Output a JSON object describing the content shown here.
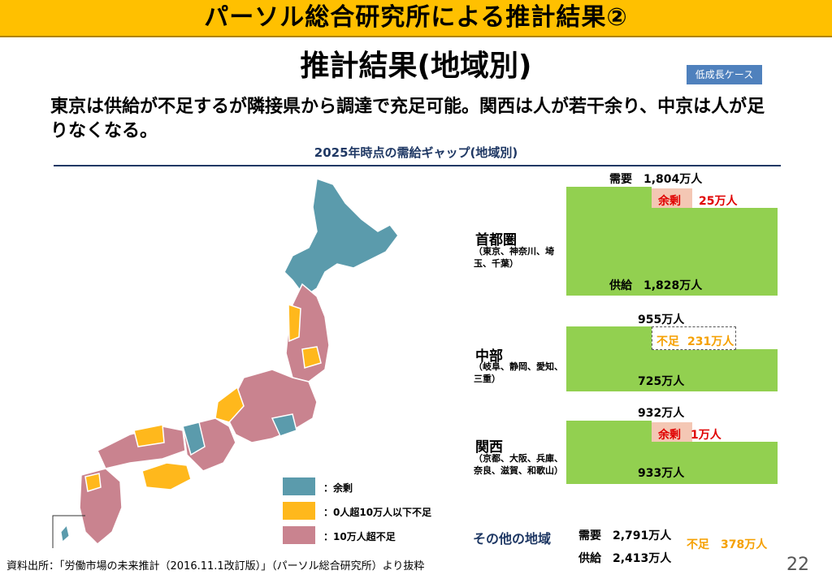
{
  "header": {
    "title": "パーソル総合研究所による推計結果②"
  },
  "subtitle": "推計結果(地域別)",
  "case_tag": "低成長ケース",
  "headline": "東京は供給が不足するが隣接県から調達で充足可能。関西は人が若干余り、中京は人が足りなくなる。",
  "chart_title": "2025年時点の需給ギャップ(地域別)",
  "regions": [
    {
      "name": "首都圏",
      "sub": "（東京、神奈川、埼玉、千葉）",
      "demand": "需要　1,804万人",
      "supply": "供給　1,828万人",
      "gap_label": "余剰",
      "gap_value": "25万人"
    },
    {
      "name": "中部",
      "sub": "（岐阜、静岡、愛知、三重）",
      "demand": "955万人",
      "supply": "725万人",
      "gap_label": "不足",
      "gap_value": "231万人"
    },
    {
      "name": "関西",
      "sub": "（京都、大阪、兵庫、奈良、滋賀、和歌山）",
      "demand": "932万人",
      "supply": "933万人",
      "gap_label": "余剰",
      "gap_value": "1万人"
    }
  ],
  "other": {
    "name": "その他の地域",
    "demand": "需要　2,791万人",
    "supply": "供給　2,413万人",
    "gap": "不足　378万人"
  },
  "legend": [
    {
      "label": "：余剰",
      "color": "#5b9bac"
    },
    {
      "label": "：0人超10万人以下不足",
      "color": "#ffb81c"
    },
    {
      "label": "：10万人超不足",
      "color": "#c9838f"
    }
  ],
  "map_colors": {
    "surplus": "#5b9bac",
    "minor": "#ffb81c",
    "major": "#c9838f"
  },
  "footer": "資料出所：「労働市場の未来推計（2016.11.1改訂版）」（パーソル総合研究所）より抜粋",
  "page_number": "22"
}
